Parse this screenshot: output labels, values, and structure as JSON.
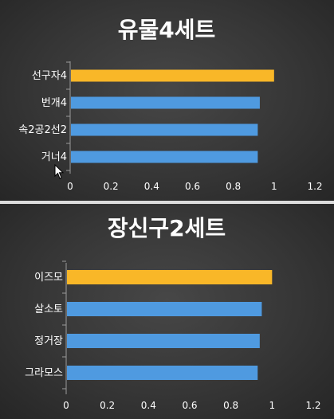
{
  "colors": {
    "highlight": "#f9b728",
    "normal": "#4f9ae0",
    "axis": "#9a9a9a"
  },
  "chart_data": [
    {
      "type": "bar",
      "orientation": "horizontal",
      "title": "유물4세트",
      "categories": [
        "선구자4",
        "번개4",
        "속2공2선2",
        "거너4"
      ],
      "values": [
        1.0,
        0.93,
        0.92,
        0.92
      ],
      "highlight_index": 0,
      "xlim": [
        0,
        1.2
      ],
      "xticks": [
        "0",
        "0.2",
        "0.4",
        "0.6",
        "0.8",
        "1",
        "1.2"
      ],
      "grid": false,
      "legend": "none"
    },
    {
      "type": "bar",
      "orientation": "horizontal",
      "title": "장신구2세트",
      "categories": [
        "이즈모",
        "살소토",
        "정거장",
        "그라모스"
      ],
      "values": [
        1.0,
        0.95,
        0.94,
        0.93
      ],
      "highlight_index": 0,
      "xlim": [
        0,
        1.2
      ],
      "xticks": [
        "0",
        "0.2",
        "0.4",
        "0.6",
        "0.8",
        "1",
        "1.2"
      ],
      "grid": false,
      "legend": "none"
    }
  ]
}
